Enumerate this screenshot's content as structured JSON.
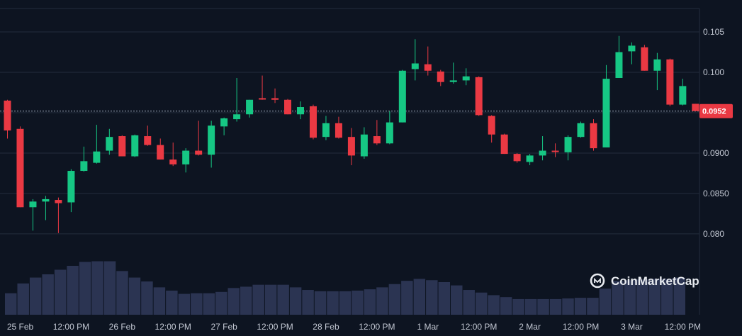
{
  "chart_data": {
    "type": "candlestick",
    "y_ticks": [
      0.08,
      0.085,
      0.09,
      0.095,
      0.1,
      0.105
    ],
    "y_tick_labels": [
      "0.080",
      "0.0850",
      "0.0900",
      "",
      "0.100",
      "0.105"
    ],
    "ylim": [
      0.0785,
      0.1079
    ],
    "x_ticks": [
      {
        "label": "25 Feb",
        "t": 0
      },
      {
        "label": "12:00 PM",
        "t": 12
      },
      {
        "label": "26 Feb",
        "t": 24
      },
      {
        "label": "12:00 PM",
        "t": 36
      },
      {
        "label": "27 Feb",
        "t": 48
      },
      {
        "label": "12:00 PM",
        "t": 60
      },
      {
        "label": "28 Feb",
        "t": 72
      },
      {
        "label": "12:00 PM",
        "t": 84
      },
      {
        "label": "1 Mar",
        "t": 96
      },
      {
        "label": "12:00 PM",
        "t": 108
      },
      {
        "label": "2 Mar",
        "t": 120
      },
      {
        "label": "12:00 PM",
        "t": 132
      },
      {
        "label": "3 Mar",
        "t": 144
      },
      {
        "label": "12:00 PM",
        "t": 156
      }
    ],
    "current_price": 0.0952,
    "current_price_label": "0.0952",
    "grid": true,
    "candles": [
      {
        "t": 0,
        "o": 0.0965,
        "h": 0.0966,
        "l": 0.0918,
        "c": 0.0928
      },
      {
        "t": 3,
        "o": 0.093,
        "h": 0.0933,
        "l": 0.0833,
        "c": 0.0833
      },
      {
        "t": 6,
        "o": 0.0833,
        "h": 0.0843,
        "l": 0.0804,
        "c": 0.084
      },
      {
        "t": 9,
        "o": 0.084,
        "h": 0.0847,
        "l": 0.0817,
        "c": 0.0843
      },
      {
        "t": 12,
        "o": 0.0842,
        "h": 0.0845,
        "l": 0.0801,
        "c": 0.0838
      },
      {
        "t": 15,
        "o": 0.0839,
        "h": 0.088,
        "l": 0.0827,
        "c": 0.0878
      },
      {
        "t": 18,
        "o": 0.0878,
        "h": 0.0908,
        "l": 0.0877,
        "c": 0.089
      },
      {
        "t": 21,
        "o": 0.0888,
        "h": 0.0935,
        "l": 0.0887,
        "c": 0.0902
      },
      {
        "t": 24,
        "o": 0.0903,
        "h": 0.093,
        "l": 0.0898,
        "c": 0.092
      },
      {
        "t": 27,
        "o": 0.0921,
        "h": 0.0922,
        "l": 0.0896,
        "c": 0.0896
      },
      {
        "t": 30,
        "o": 0.0896,
        "h": 0.0923,
        "l": 0.0895,
        "c": 0.0922
      },
      {
        "t": 33,
        "o": 0.0921,
        "h": 0.0934,
        "l": 0.0909,
        "c": 0.091
      },
      {
        "t": 36,
        "o": 0.091,
        "h": 0.0918,
        "l": 0.0892,
        "c": 0.0892
      },
      {
        "t": 39,
        "o": 0.0892,
        "h": 0.0913,
        "l": 0.0884,
        "c": 0.0886
      },
      {
        "t": 42,
        "o": 0.0886,
        "h": 0.0906,
        "l": 0.0876,
        "c": 0.0903
      },
      {
        "t": 45,
        "o": 0.0903,
        "h": 0.094,
        "l": 0.0897,
        "c": 0.0898
      },
      {
        "t": 48,
        "o": 0.0898,
        "h": 0.094,
        "l": 0.0882,
        "c": 0.0934
      },
      {
        "t": 51,
        "o": 0.0933,
        "h": 0.0944,
        "l": 0.0922,
        "c": 0.0943
      },
      {
        "t": 54,
        "o": 0.0942,
        "h": 0.0993,
        "l": 0.0939,
        "c": 0.0948
      },
      {
        "t": 57,
        "o": 0.0948,
        "h": 0.0966,
        "l": 0.0944,
        "c": 0.0966
      },
      {
        "t": 60,
        "o": 0.0968,
        "h": 0.0996,
        "l": 0.0966,
        "c": 0.0967
      },
      {
        "t": 63,
        "o": 0.0968,
        "h": 0.098,
        "l": 0.0962,
        "c": 0.0966
      },
      {
        "t": 66,
        "o": 0.0966,
        "h": 0.0967,
        "l": 0.0948,
        "c": 0.0948
      },
      {
        "t": 69,
        "o": 0.0948,
        "h": 0.0964,
        "l": 0.0942,
        "c": 0.0957
      },
      {
        "t": 72,
        "o": 0.0958,
        "h": 0.096,
        "l": 0.0917,
        "c": 0.0919
      },
      {
        "t": 75,
        "o": 0.092,
        "h": 0.0946,
        "l": 0.0916,
        "c": 0.0937
      },
      {
        "t": 78,
        "o": 0.0937,
        "h": 0.0945,
        "l": 0.0918,
        "c": 0.0919
      },
      {
        "t": 81,
        "o": 0.092,
        "h": 0.0931,
        "l": 0.0885,
        "c": 0.0897
      },
      {
        "t": 84,
        "o": 0.0896,
        "h": 0.0932,
        "l": 0.0893,
        "c": 0.0923
      },
      {
        "t": 87,
        "o": 0.0921,
        "h": 0.0941,
        "l": 0.091,
        "c": 0.0912
      },
      {
        "t": 90,
        "o": 0.0912,
        "h": 0.0952,
        "l": 0.0911,
        "c": 0.0938
      },
      {
        "t": 93,
        "o": 0.0938,
        "h": 0.1003,
        "l": 0.0938,
        "c": 0.1002
      },
      {
        "t": 96,
        "o": 0.1004,
        "h": 0.1041,
        "l": 0.099,
        "c": 0.1011
      },
      {
        "t": 99,
        "o": 0.101,
        "h": 0.1032,
        "l": 0.0996,
        "c": 0.1002
      },
      {
        "t": 102,
        "o": 0.1001,
        "h": 0.1003,
        "l": 0.0983,
        "c": 0.0988
      },
      {
        "t": 105,
        "o": 0.0988,
        "h": 0.1012,
        "l": 0.0986,
        "c": 0.099
      },
      {
        "t": 108,
        "o": 0.099,
        "h": 0.1005,
        "l": 0.0984,
        "c": 0.0995
      },
      {
        "t": 111,
        "o": 0.0994,
        "h": 0.0995,
        "l": 0.0946,
        "c": 0.0947
      },
      {
        "t": 114,
        "o": 0.0946,
        "h": 0.0947,
        "l": 0.0913,
        "c": 0.0923
      },
      {
        "t": 117,
        "o": 0.0923,
        "h": 0.0924,
        "l": 0.0899,
        "c": 0.0899
      },
      {
        "t": 120,
        "o": 0.0899,
        "h": 0.09,
        "l": 0.0888,
        "c": 0.089
      },
      {
        "t": 123,
        "o": 0.0889,
        "h": 0.0899,
        "l": 0.0885,
        "c": 0.0897
      },
      {
        "t": 126,
        "o": 0.0897,
        "h": 0.0921,
        "l": 0.0891,
        "c": 0.0903
      },
      {
        "t": 129,
        "o": 0.0903,
        "h": 0.0912,
        "l": 0.0895,
        "c": 0.0902
      },
      {
        "t": 132,
        "o": 0.0901,
        "h": 0.0922,
        "l": 0.0891,
        "c": 0.092
      },
      {
        "t": 135,
        "o": 0.092,
        "h": 0.0939,
        "l": 0.0919,
        "c": 0.0937
      },
      {
        "t": 138,
        "o": 0.0937,
        "h": 0.0942,
        "l": 0.0903,
        "c": 0.0906
      },
      {
        "t": 141,
        "o": 0.0907,
        "h": 0.1009,
        "l": 0.0907,
        "c": 0.0992
      },
      {
        "t": 144,
        "o": 0.0993,
        "h": 0.1045,
        "l": 0.0993,
        "c": 0.1025
      },
      {
        "t": 147,
        "o": 0.1026,
        "h": 0.1037,
        "l": 0.101,
        "c": 0.1033
      },
      {
        "t": 150,
        "o": 0.1031,
        "h": 0.1034,
        "l": 0.1002,
        "c": 0.1002
      },
      {
        "t": 153,
        "o": 0.1002,
        "h": 0.1024,
        "l": 0.0978,
        "c": 0.1016
      },
      {
        "t": 156,
        "o": 0.1016,
        "h": 0.1017,
        "l": 0.0958,
        "c": 0.096
      },
      {
        "t": 159,
        "o": 0.096,
        "h": 0.0992,
        "l": 0.0959,
        "c": 0.0983
      },
      {
        "t": 162,
        "o": 0.0961,
        "h": 0.0961,
        "l": 0.0952,
        "c": 0.0952
      }
    ],
    "volume": [
      {
        "t": 0,
        "v": 33
      },
      {
        "t": 1,
        "v": 48
      },
      {
        "t": 2,
        "v": 57
      },
      {
        "t": 3,
        "v": 62
      },
      {
        "t": 4,
        "v": 69
      },
      {
        "t": 5,
        "v": 75
      },
      {
        "t": 6,
        "v": 81
      },
      {
        "t": 7,
        "v": 82
      },
      {
        "t": 8,
        "v": 82
      },
      {
        "t": 9,
        "v": 67
      },
      {
        "t": 10,
        "v": 57
      },
      {
        "t": 11,
        "v": 51
      },
      {
        "t": 12,
        "v": 42
      },
      {
        "t": 13,
        "v": 37
      },
      {
        "t": 14,
        "v": 32
      },
      {
        "t": 15,
        "v": 33
      },
      {
        "t": 16,
        "v": 33
      },
      {
        "t": 17,
        "v": 35
      },
      {
        "t": 18,
        "v": 41
      },
      {
        "t": 19,
        "v": 43
      },
      {
        "t": 20,
        "v": 46
      },
      {
        "t": 21,
        "v": 46
      },
      {
        "t": 22,
        "v": 46
      },
      {
        "t": 23,
        "v": 42
      },
      {
        "t": 24,
        "v": 38
      },
      {
        "t": 25,
        "v": 36
      },
      {
        "t": 26,
        "v": 36
      },
      {
        "t": 27,
        "v": 36
      },
      {
        "t": 28,
        "v": 37
      },
      {
        "t": 29,
        "v": 39
      },
      {
        "t": 30,
        "v": 42
      },
      {
        "t": 31,
        "v": 47
      },
      {
        "t": 32,
        "v": 52
      },
      {
        "t": 33,
        "v": 55
      },
      {
        "t": 34,
        "v": 53
      },
      {
        "t": 35,
        "v": 50
      },
      {
        "t": 36,
        "v": 45
      },
      {
        "t": 37,
        "v": 38
      },
      {
        "t": 38,
        "v": 34
      },
      {
        "t": 39,
        "v": 30
      },
      {
        "t": 40,
        "v": 27
      },
      {
        "t": 41,
        "v": 24
      },
      {
        "t": 42,
        "v": 24
      },
      {
        "t": 43,
        "v": 24
      },
      {
        "t": 44,
        "v": 24
      },
      {
        "t": 45,
        "v": 25
      },
      {
        "t": 46,
        "v": 26
      },
      {
        "t": 47,
        "v": 26
      },
      {
        "t": 48,
        "v": 40
      },
      {
        "t": 49,
        "v": 52
      },
      {
        "t": 50,
        "v": 53
      },
      {
        "t": 51,
        "v": 54
      },
      {
        "t": 52,
        "v": 55
      },
      {
        "t": 53,
        "v": 55
      },
      {
        "t": 54,
        "v": 57
      }
    ],
    "volume_max": 100
  },
  "watermark": {
    "text": "CoinMarketCap"
  },
  "colors": {
    "background": "#0d1421",
    "up": "#16c784",
    "down": "#ea3943",
    "grid": "#232c3d",
    "volume": "#2b3452",
    "axis_text": "#c3c8d3"
  }
}
